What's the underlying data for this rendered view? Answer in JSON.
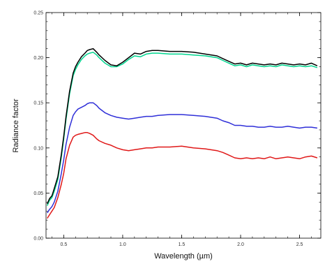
{
  "chart_data": {
    "type": "line",
    "title": "",
    "xlabel": "Wavelength (µm)",
    "ylabel": "Radiance factor",
    "xlim": [
      0.35,
      2.68
    ],
    "ylim": [
      0.0,
      0.25
    ],
    "xticks": [
      0.5,
      1.0,
      1.5,
      2.0,
      2.5
    ],
    "xtick_labels": [
      "0.5",
      "1.0",
      "1.5",
      "2.0",
      "2.5"
    ],
    "yticks": [
      0.0,
      0.05,
      0.1,
      0.15,
      0.2,
      0.25
    ],
    "ytick_labels": [
      "0.00",
      "0.05",
      "0.10",
      "0.15",
      "0.20",
      "0.25"
    ],
    "grid": false,
    "legend": "none",
    "series": [
      {
        "color": "#00d68f",
        "x": [
          0.36,
          0.38,
          0.4,
          0.42,
          0.45,
          0.48,
          0.5,
          0.52,
          0.55,
          0.58,
          0.6,
          0.62,
          0.65,
          0.68,
          0.7,
          0.72,
          0.75,
          0.78,
          0.8,
          0.85,
          0.9,
          0.95,
          1.0,
          1.05,
          1.1,
          1.15,
          1.2,
          1.25,
          1.3,
          1.4,
          1.5,
          1.6,
          1.7,
          1.8,
          1.85,
          1.9,
          1.95,
          2.0,
          2.05,
          2.1,
          2.15,
          2.2,
          2.25,
          2.3,
          2.35,
          2.4,
          2.45,
          2.5,
          2.55,
          2.6,
          2.65
        ],
        "y": [
          0.036,
          0.042,
          0.045,
          0.052,
          0.065,
          0.09,
          0.11,
          0.132,
          0.16,
          0.18,
          0.187,
          0.192,
          0.198,
          0.202,
          0.204,
          0.205,
          0.206,
          0.203,
          0.2,
          0.194,
          0.19,
          0.19,
          0.193,
          0.198,
          0.202,
          0.201,
          0.204,
          0.205,
          0.205,
          0.204,
          0.204,
          0.203,
          0.202,
          0.2,
          0.197,
          0.194,
          0.191,
          0.192,
          0.19,
          0.192,
          0.191,
          0.19,
          0.191,
          0.19,
          0.192,
          0.191,
          0.19,
          0.191,
          0.19,
          0.191,
          0.189
        ]
      },
      {
        "color": "#000000",
        "x": [
          0.36,
          0.38,
          0.4,
          0.42,
          0.45,
          0.48,
          0.5,
          0.52,
          0.55,
          0.58,
          0.6,
          0.62,
          0.65,
          0.68,
          0.7,
          0.72,
          0.75,
          0.78,
          0.8,
          0.85,
          0.9,
          0.95,
          1.0,
          1.05,
          1.1,
          1.15,
          1.2,
          1.25,
          1.3,
          1.4,
          1.5,
          1.6,
          1.7,
          1.8,
          1.85,
          1.9,
          1.95,
          2.0,
          2.05,
          2.1,
          2.15,
          2.2,
          2.25,
          2.3,
          2.35,
          2.4,
          2.45,
          2.5,
          2.55,
          2.6,
          2.65
        ],
        "y": [
          0.038,
          0.044,
          0.047,
          0.055,
          0.068,
          0.093,
          0.113,
          0.135,
          0.163,
          0.183,
          0.19,
          0.195,
          0.201,
          0.205,
          0.208,
          0.209,
          0.21,
          0.206,
          0.203,
          0.197,
          0.192,
          0.191,
          0.195,
          0.2,
          0.205,
          0.204,
          0.207,
          0.208,
          0.208,
          0.207,
          0.207,
          0.206,
          0.204,
          0.202,
          0.199,
          0.196,
          0.193,
          0.194,
          0.192,
          0.194,
          0.193,
          0.192,
          0.193,
          0.192,
          0.194,
          0.193,
          0.192,
          0.193,
          0.192,
          0.194,
          0.191
        ]
      },
      {
        "color": "#2f2fd8",
        "x": [
          0.36,
          0.38,
          0.4,
          0.42,
          0.45,
          0.48,
          0.5,
          0.52,
          0.55,
          0.58,
          0.6,
          0.62,
          0.65,
          0.68,
          0.7,
          0.72,
          0.75,
          0.78,
          0.8,
          0.85,
          0.9,
          0.95,
          1.0,
          1.05,
          1.1,
          1.15,
          1.2,
          1.25,
          1.3,
          1.4,
          1.5,
          1.6,
          1.7,
          1.8,
          1.85,
          1.9,
          1.95,
          2.0,
          2.05,
          2.1,
          2.15,
          2.2,
          2.25,
          2.3,
          2.35,
          2.4,
          2.45,
          2.5,
          2.55,
          2.6,
          2.65
        ],
        "y": [
          0.028,
          0.032,
          0.035,
          0.04,
          0.052,
          0.072,
          0.087,
          0.104,
          0.123,
          0.136,
          0.14,
          0.143,
          0.145,
          0.147,
          0.149,
          0.15,
          0.15,
          0.147,
          0.144,
          0.139,
          0.136,
          0.134,
          0.133,
          0.132,
          0.133,
          0.134,
          0.135,
          0.135,
          0.136,
          0.137,
          0.137,
          0.136,
          0.135,
          0.133,
          0.13,
          0.128,
          0.125,
          0.125,
          0.124,
          0.124,
          0.123,
          0.123,
          0.124,
          0.123,
          0.123,
          0.124,
          0.123,
          0.122,
          0.123,
          0.123,
          0.122
        ]
      },
      {
        "color": "#e01818",
        "x": [
          0.36,
          0.38,
          0.4,
          0.42,
          0.45,
          0.48,
          0.5,
          0.52,
          0.55,
          0.58,
          0.6,
          0.62,
          0.65,
          0.68,
          0.7,
          0.72,
          0.75,
          0.78,
          0.8,
          0.85,
          0.9,
          0.95,
          1.0,
          1.05,
          1.1,
          1.15,
          1.2,
          1.25,
          1.3,
          1.4,
          1.5,
          1.6,
          1.7,
          1.8,
          1.85,
          1.9,
          1.95,
          2.0,
          2.05,
          2.1,
          2.15,
          2.2,
          2.25,
          2.3,
          2.35,
          2.4,
          2.45,
          2.5,
          2.55,
          2.6,
          2.65
        ],
        "y": [
          0.022,
          0.026,
          0.03,
          0.034,
          0.045,
          0.06,
          0.072,
          0.088,
          0.103,
          0.112,
          0.114,
          0.115,
          0.116,
          0.117,
          0.117,
          0.116,
          0.114,
          0.11,
          0.108,
          0.105,
          0.103,
          0.1,
          0.098,
          0.097,
          0.098,
          0.099,
          0.1,
          0.1,
          0.101,
          0.101,
          0.102,
          0.1,
          0.099,
          0.097,
          0.095,
          0.092,
          0.089,
          0.088,
          0.089,
          0.088,
          0.089,
          0.088,
          0.09,
          0.088,
          0.089,
          0.09,
          0.089,
          0.088,
          0.09,
          0.091,
          0.089
        ]
      }
    ]
  }
}
